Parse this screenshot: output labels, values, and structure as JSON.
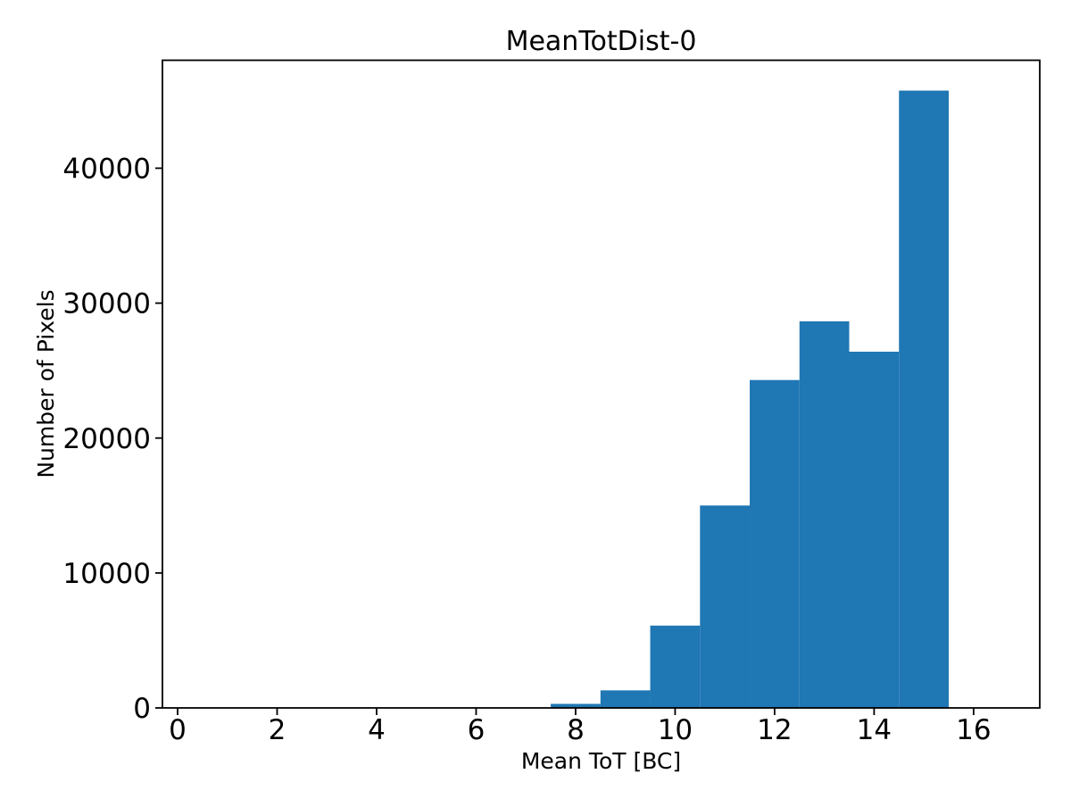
{
  "figure": {
    "background": "#ffffff"
  },
  "chart_data": {
    "type": "bar",
    "subtype": "histogram",
    "title": "MeanTotDist-0",
    "xlabel": "Mean ToT [BC]",
    "ylabel": "Number of Pixels",
    "bar_color": "#1f77b4",
    "axis_color": "#000000",
    "grid": false,
    "legend_position": "none",
    "bin_edges": [
      0.5,
      1.5,
      2.5,
      3.5,
      4.5,
      5.5,
      6.5,
      7.5,
      8.5,
      9.5,
      10.5,
      11.5,
      12.5,
      13.5,
      14.5,
      15.5,
      16.5
    ],
    "counts": [
      0,
      0,
      0,
      0,
      0,
      0,
      0,
      300,
      1300,
      6100,
      15000,
      24300,
      28650,
      26400,
      45750,
      0
    ],
    "xticks": [
      0,
      2,
      4,
      6,
      8,
      10,
      12,
      14,
      16
    ],
    "yticks": [
      0,
      10000,
      20000,
      30000,
      40000
    ],
    "xlim": [
      -0.305,
      17.33
    ],
    "ylim": [
      0,
      48000
    ]
  }
}
